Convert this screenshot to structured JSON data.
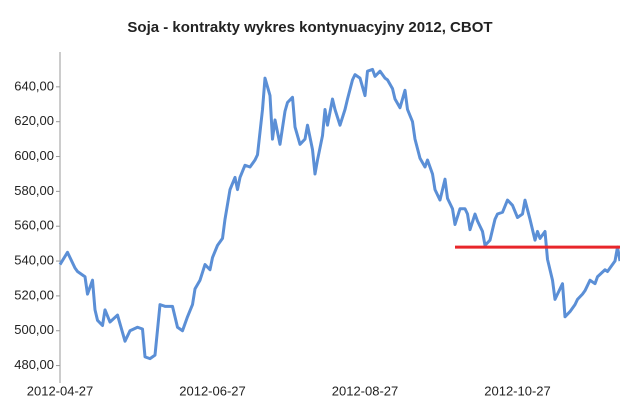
{
  "chart_data": {
    "type": "line",
    "title": "Soja - kontrakty wykres kontynuacyjny 2012, CBOT",
    "x": [
      "2012-04-27",
      "2012-04-30",
      "2012-05-03",
      "2012-05-04",
      "2012-05-07",
      "2012-05-08",
      "2012-05-10",
      "2012-05-11",
      "2012-05-12",
      "2012-05-14",
      "2012-05-15",
      "2012-05-17",
      "2012-05-20",
      "2012-05-23",
      "2012-05-25",
      "2012-05-28",
      "2012-05-30",
      "2012-05-31",
      "2012-06-02",
      "2012-06-04",
      "2012-06-06",
      "2012-06-08",
      "2012-06-11",
      "2012-06-13",
      "2012-06-15",
      "2012-06-17",
      "2012-06-19",
      "2012-06-20",
      "2012-06-22",
      "2012-06-24",
      "2012-06-26",
      "2012-06-27",
      "2012-06-29",
      "2012-07-01",
      "2012-07-02",
      "2012-07-04",
      "2012-07-06",
      "2012-07-07",
      "2012-07-08",
      "2012-07-10",
      "2012-07-12",
      "2012-07-14",
      "2012-07-15",
      "2012-07-17",
      "2012-07-18",
      "2012-07-20",
      "2012-07-21",
      "2012-07-22",
      "2012-07-24",
      "2012-07-26",
      "2012-07-27",
      "2012-07-29",
      "2012-07-30",
      "2012-08-01",
      "2012-08-03",
      "2012-08-04",
      "2012-08-06",
      "2012-08-07",
      "2012-08-08",
      "2012-08-10",
      "2012-08-11",
      "2012-08-12",
      "2012-08-14",
      "2012-08-15",
      "2012-08-17",
      "2012-08-19",
      "2012-08-20",
      "2012-08-22",
      "2012-08-23",
      "2012-08-25",
      "2012-08-27",
      "2012-08-28",
      "2012-08-30",
      "2012-08-31",
      "2012-09-02",
      "2012-09-04",
      "2012-09-05",
      "2012-09-07",
      "2012-09-08",
      "2012-09-10",
      "2012-09-12",
      "2012-09-13",
      "2012-09-15",
      "2012-09-16",
      "2012-09-18",
      "2012-09-20",
      "2012-09-21",
      "2012-09-23",
      "2012-09-24",
      "2012-09-26",
      "2012-09-28",
      "2012-09-29",
      "2012-10-01",
      "2012-10-02",
      "2012-10-04",
      "2012-10-06",
      "2012-10-07",
      "2012-10-08",
      "2012-10-10",
      "2012-10-11",
      "2012-10-13",
      "2012-10-14",
      "2012-10-16",
      "2012-10-18",
      "2012-10-19",
      "2012-10-21",
      "2012-10-23",
      "2012-10-25",
      "2012-10-27",
      "2012-10-29",
      "2012-10-30",
      "2012-11-01",
      "2012-11-03",
      "2012-11-04",
      "2012-11-05",
      "2012-11-07",
      "2012-11-08",
      "2012-11-10",
      "2012-11-11",
      "2012-11-12",
      "2012-11-14",
      "2012-11-15",
      "2012-11-17",
      "2012-11-19",
      "2012-11-20",
      "2012-11-22",
      "2012-11-23",
      "2012-11-25",
      "2012-11-27",
      "2012-11-28",
      "2012-12-01",
      "2012-12-02",
      "2012-12-03",
      "2012-12-05",
      "2012-12-06",
      "2012-12-07"
    ],
    "series": [
      {
        "color": "#5b8fd6",
        "values": [
          538,
          545,
          536,
          534,
          531,
          521,
          529,
          512,
          506,
          503,
          512,
          505,
          509,
          494,
          500,
          502,
          501,
          485,
          484,
          486,
          515,
          514,
          514,
          502,
          500,
          508,
          515,
          524,
          529,
          538,
          535,
          542,
          549,
          553,
          564,
          581,
          588,
          581,
          588,
          595,
          594,
          598,
          601,
          627,
          645,
          635,
          610,
          621,
          607,
          626,
          631,
          634,
          617,
          607,
          610,
          618,
          604,
          590,
          598,
          612,
          627,
          618,
          633,
          627,
          618,
          627,
          633,
          644,
          647,
          645,
          635,
          649,
          650,
          646,
          649,
          645,
          644,
          639,
          633,
          628,
          638,
          627,
          620,
          610,
          599,
          594,
          598,
          590,
          581,
          575,
          587,
          576,
          570,
          561,
          570,
          570,
          567,
          558,
          567,
          563,
          557,
          549,
          552,
          564,
          567,
          568,
          575,
          572,
          565,
          567,
          575,
          564,
          552,
          557,
          553,
          557,
          541,
          529,
          518,
          521,
          527,
          508,
          511,
          515,
          518,
          521,
          523,
          529,
          527,
          531,
          535,
          534,
          536,
          540,
          548,
          540
        ]
      }
    ],
    "hline": {
      "y": 548,
      "x": [
        "2012-10-02",
        "2012-12-07"
      ],
      "color": "#e8262a"
    },
    "xlim": [
      "2012-04-27",
      "2012-12-07"
    ],
    "xticks": [
      "2012-04-27",
      "2012-06-27",
      "2012-08-27",
      "2012-10-27"
    ],
    "ylim": [
      470,
      660
    ],
    "yticks": [
      {
        "value": 480,
        "label": "480,00"
      },
      {
        "value": 500,
        "label": "500,00"
      },
      {
        "value": 520,
        "label": "520,00"
      },
      {
        "value": 540,
        "label": "540,00"
      },
      {
        "value": 560,
        "label": "560,00"
      },
      {
        "value": 580,
        "label": "580,00"
      },
      {
        "value": 600,
        "label": "600,00"
      },
      {
        "value": 620,
        "label": "620,00"
      },
      {
        "value": 640,
        "label": "640,00"
      }
    ],
    "grid": false
  }
}
